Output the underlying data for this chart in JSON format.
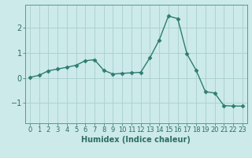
{
  "x": [
    0,
    1,
    2,
    3,
    4,
    5,
    6,
    7,
    8,
    9,
    10,
    11,
    12,
    13,
    14,
    15,
    16,
    17,
    18,
    19,
    20,
    21,
    22,
    23
  ],
  "y": [
    0.02,
    0.1,
    0.28,
    0.35,
    0.42,
    0.5,
    0.68,
    0.72,
    0.3,
    0.15,
    0.18,
    0.2,
    0.22,
    0.8,
    1.5,
    2.45,
    2.35,
    0.95,
    0.3,
    -0.55,
    -0.6,
    -1.1,
    -1.12,
    -1.12
  ],
  "line_color": "#2e7d6e",
  "marker": "D",
  "markersize": 2.5,
  "linewidth": 1.0,
  "background_color": "#cceaea",
  "grid_color": "#aacece",
  "xlabel": "Humidex (Indice chaleur)",
  "ylim": [
    -1.8,
    2.9
  ],
  "xlim": [
    -0.5,
    23.5
  ],
  "yticks": [
    -1,
    0,
    1,
    2
  ],
  "xticks": [
    0,
    1,
    2,
    3,
    4,
    5,
    6,
    7,
    8,
    9,
    10,
    11,
    12,
    13,
    14,
    15,
    16,
    17,
    18,
    19,
    20,
    21,
    22,
    23
  ],
  "tick_color": "#2e6e60",
  "label_color": "#2e6e60",
  "axis_color": "#5a9a8a",
  "xlabel_fontsize": 7,
  "tick_fontsize": 6
}
